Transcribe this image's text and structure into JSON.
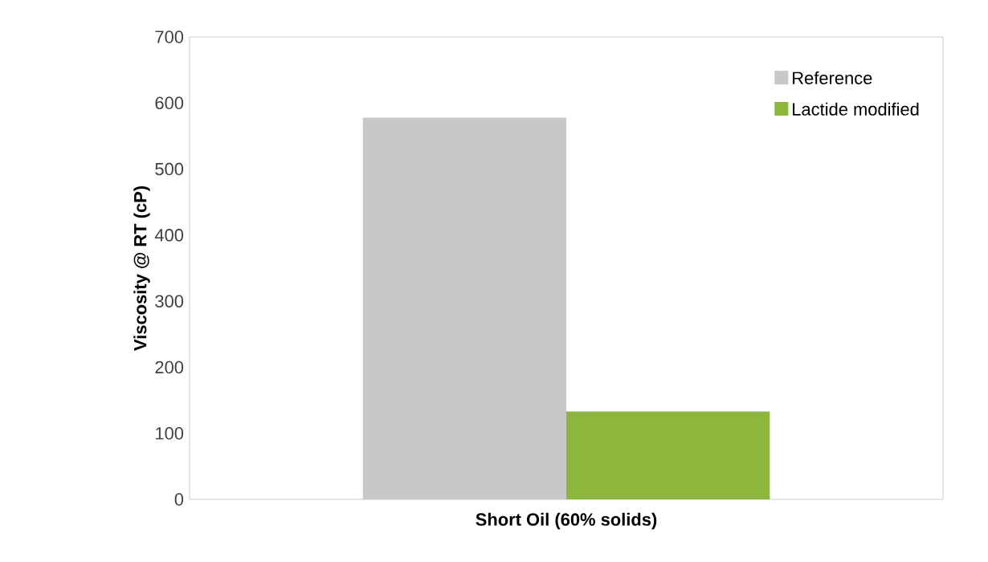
{
  "chart_data": {
    "type": "bar",
    "xlabel": "Short Oil (60% solids)",
    "ylabel": "Viscosity @ RT (cP)",
    "categories": [
      null
    ],
    "series": [
      {
        "name": "Reference",
        "color": "#c8c8c8",
        "values": [
          578
        ]
      },
      {
        "name": "Lactide modified",
        "color": "#8db63c",
        "values": [
          133
        ]
      }
    ],
    "ylim": [
      0,
      700
    ],
    "yticks": [
      0,
      100,
      200,
      300,
      400,
      500,
      600,
      700
    ],
    "legend": "top right"
  }
}
